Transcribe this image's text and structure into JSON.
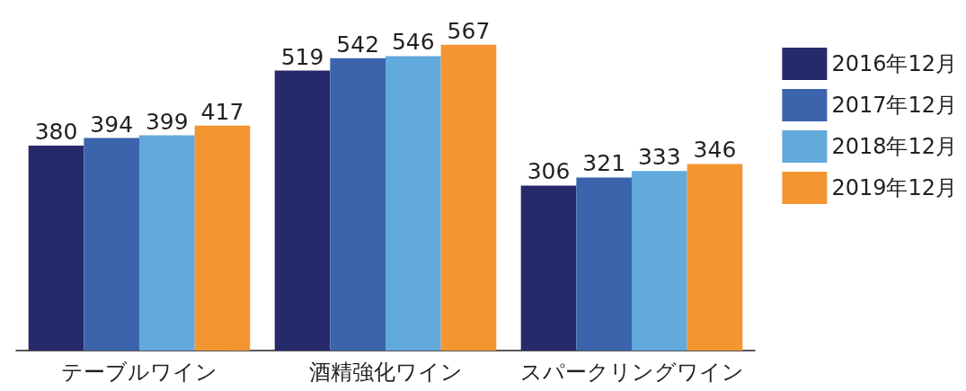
{
  "chart_data": {
    "type": "bar",
    "categories": [
      "テーブルワイン",
      "酒精強化ワイン",
      "スパークリングワイン"
    ],
    "series": [
      {
        "name": "2016年12月",
        "color": "#262a6b",
        "values": [
          380,
          519,
          306
        ]
      },
      {
        "name": "2017年12月",
        "color": "#3b64ad",
        "values": [
          394,
          542,
          321
        ]
      },
      {
        "name": "2018年12月",
        "color": "#62a9dc",
        "values": [
          399,
          546,
          333
        ]
      },
      {
        "name": "2019年12月",
        "color": "#f39531",
        "values": [
          417,
          567,
          346
        ]
      }
    ],
    "data_labels": true,
    "legend": "right"
  }
}
